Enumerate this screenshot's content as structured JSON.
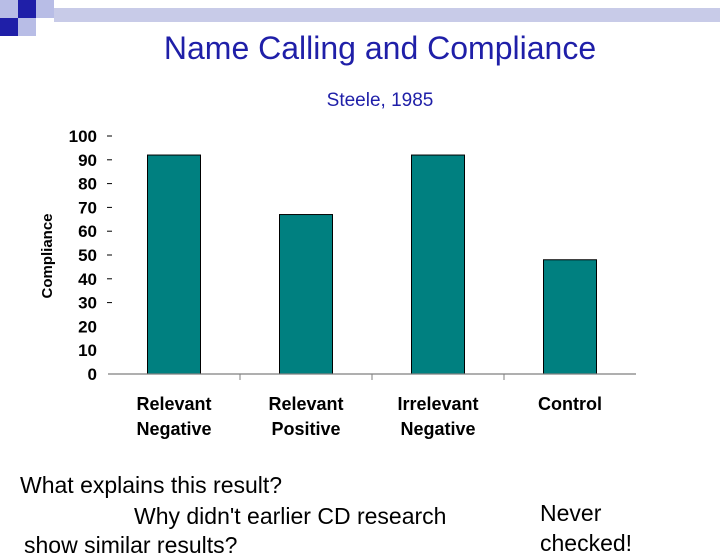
{
  "slide": {
    "title": "Name Calling and Compliance",
    "question_line1": "What explains this result?",
    "question_line2": "Why didn't earlier CD research",
    "question_line3": "show similar results?",
    "note_line1": "Never",
    "note_line2": "checked!"
  },
  "chart_data": {
    "type": "bar",
    "title": "",
    "subtitle": "Steele, 1985",
    "xlabel": "",
    "ylabel": "Compliance",
    "categories": [
      [
        "Relevant",
        "Negative"
      ],
      [
        "Relevant",
        "Positive"
      ],
      [
        "Irrelevant",
        "Negative"
      ],
      [
        "Control"
      ]
    ],
    "values": [
      92,
      67,
      92,
      48
    ],
    "ylim": [
      0,
      100
    ],
    "yticks": [
      "0",
      "10",
      "20",
      "30",
      "40",
      "50",
      "60",
      "70",
      "80",
      "90",
      "100"
    ],
    "bar_color": "#008080",
    "grid": false,
    "legend": "none"
  },
  "colors": {
    "title": "#1f1fa8",
    "decor_dark": "#1f1fa8",
    "decor_light": "#b8bde6"
  }
}
